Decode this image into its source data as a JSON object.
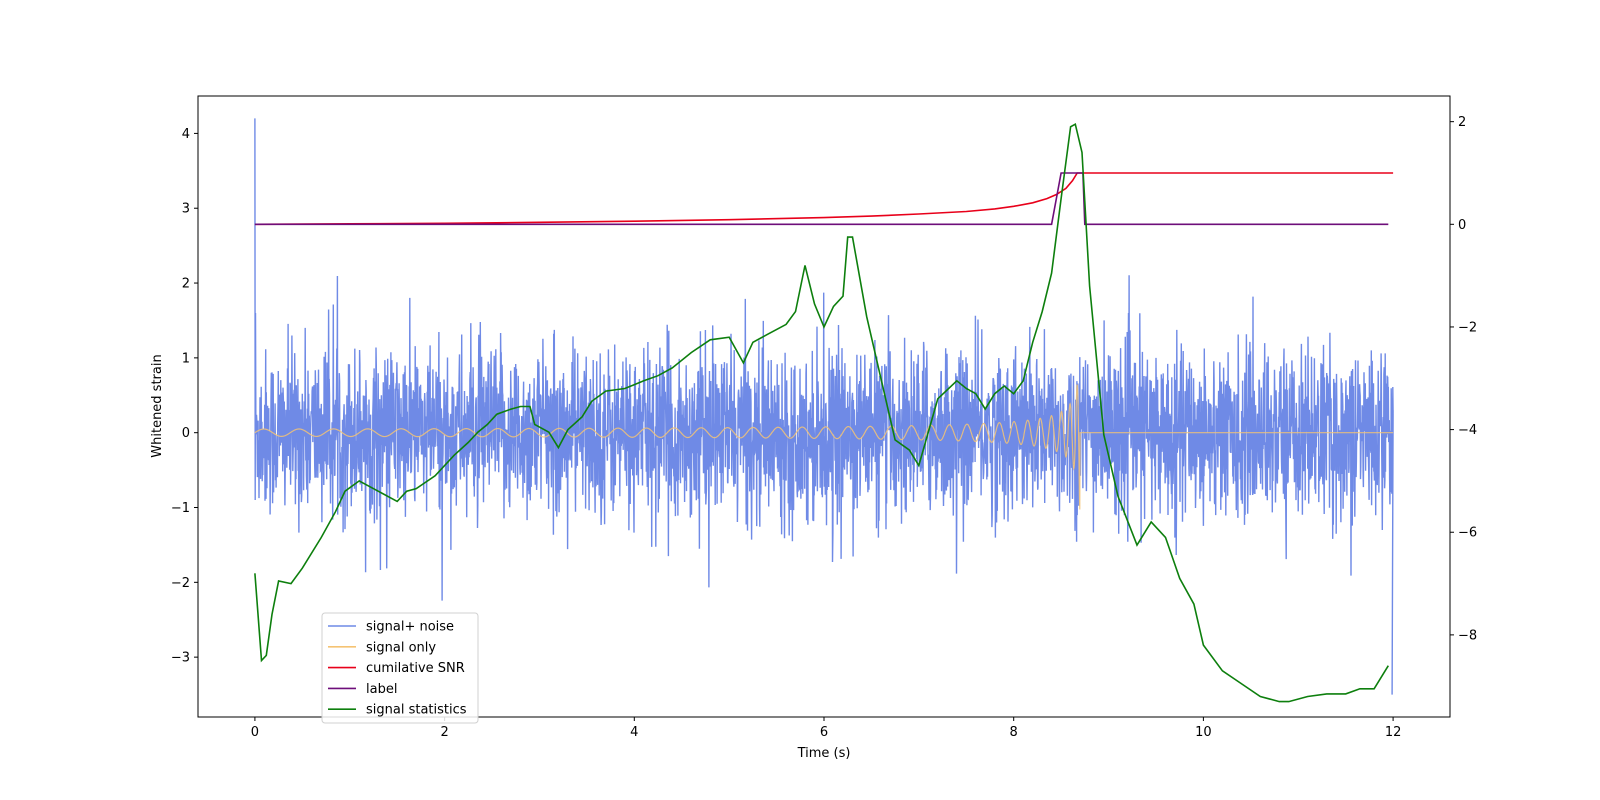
{
  "chart_data": {
    "type": "line",
    "xlabel": "Time (s)",
    "ylabel": "Whitened strain",
    "xlim": [
      -0.6,
      12.6
    ],
    "ylim_left": [
      -3.8,
      4.5
    ],
    "ylim_right": [
      -9.6,
      2.5
    ],
    "x_ticks": [
      0,
      2,
      4,
      6,
      8,
      10,
      12
    ],
    "y_left_ticks": [
      -3,
      -2,
      -1,
      0,
      1,
      2,
      3,
      4
    ],
    "y_right_ticks": [
      -8,
      -6,
      -4,
      -2,
      0,
      2
    ],
    "legend_position": "lower-left",
    "series": [
      {
        "name": "signal+ noise",
        "axis": "left",
        "color": "#6f8ae6",
        "kind": "noise",
        "description_values": {
          "t_start": 0,
          "t_end": 12,
          "spike_t": 0.0,
          "spike_max": 4.2,
          "end_min": -3.5,
          "typical_amplitude": 0.55
        }
      },
      {
        "name": "signal only",
        "axis": "left",
        "color": "#f5c373",
        "kind": "chirp",
        "description_values": {
          "t_start": 0,
          "t_merger": 8.7,
          "t_end": 12,
          "peak_amplitude": 1.1
        }
      },
      {
        "name": "cumilative SNR",
        "axis": "right",
        "color": "#e8001a",
        "x": [
          0,
          1,
          2,
          3,
          4,
          5,
          6,
          6.5,
          7,
          7.5,
          7.8,
          8.0,
          8.2,
          8.35,
          8.45,
          8.55,
          8.62,
          8.67,
          8.71,
          8.72,
          9,
          10,
          11,
          12
        ],
        "y": [
          0,
          0.01,
          0.02,
          0.04,
          0.06,
          0.09,
          0.13,
          0.16,
          0.2,
          0.25,
          0.3,
          0.35,
          0.42,
          0.5,
          0.58,
          0.7,
          0.85,
          1.0,
          1.0,
          1.0,
          1.0,
          1.0,
          1.0,
          1.0
        ]
      },
      {
        "name": "label",
        "axis": "right",
        "color": "#6e0e7a",
        "x": [
          0,
          8.4,
          8.5,
          8.73,
          8.75,
          11.95
        ],
        "y": [
          0,
          0,
          1,
          1,
          0,
          0
        ]
      },
      {
        "name": "signal statistics",
        "axis": "right",
        "color": "#0d7f0d",
        "x": [
          0,
          0.07,
          0.12,
          0.18,
          0.25,
          0.38,
          0.5,
          0.7,
          0.85,
          0.95,
          1.1,
          1.3,
          1.5,
          1.6,
          1.7,
          1.9,
          2.1,
          2.25,
          2.35,
          2.45,
          2.55,
          2.7,
          2.8,
          2.9,
          2.95,
          3.1,
          3.2,
          3.3,
          3.45,
          3.55,
          3.7,
          3.9,
          4.1,
          4.25,
          4.4,
          4.6,
          4.8,
          5.0,
          5.15,
          5.25,
          5.4,
          5.6,
          5.7,
          5.8,
          5.9,
          6.0,
          6.1,
          6.2,
          6.25,
          6.3,
          6.45,
          6.6,
          6.75,
          6.9,
          7.0,
          7.2,
          7.4,
          7.5,
          7.6,
          7.7,
          7.8,
          7.9,
          8.0,
          8.1,
          8.2,
          8.3,
          8.4,
          8.5,
          8.6,
          8.65,
          8.72,
          8.8,
          8.95,
          9.1,
          9.3,
          9.45,
          9.6,
          9.75,
          9.9,
          10.0,
          10.2,
          10.4,
          10.6,
          10.8,
          10.9,
          11.1,
          11.3,
          11.5,
          11.65,
          11.8,
          11.95
        ],
        "y": [
          -6.8,
          -8.5,
          -8.4,
          -7.6,
          -6.95,
          -7.0,
          -6.7,
          -6.1,
          -5.6,
          -5.2,
          -5.0,
          -5.2,
          -5.4,
          -5.2,
          -5.15,
          -4.9,
          -4.5,
          -4.25,
          -4.05,
          -3.9,
          -3.7,
          -3.6,
          -3.55,
          -3.55,
          -3.9,
          -4.05,
          -4.35,
          -4.0,
          -3.75,
          -3.45,
          -3.25,
          -3.2,
          -3.05,
          -2.95,
          -2.8,
          -2.5,
          -2.25,
          -2.2,
          -2.7,
          -2.3,
          -2.15,
          -1.95,
          -1.7,
          -0.8,
          -1.55,
          -2.0,
          -1.6,
          -1.4,
          -0.25,
          -0.25,
          -1.8,
          -3.0,
          -4.2,
          -4.4,
          -4.7,
          -3.4,
          -3.05,
          -3.2,
          -3.3,
          -3.6,
          -3.3,
          -3.15,
          -3.3,
          -3.05,
          -2.3,
          -1.7,
          -0.95,
          0.5,
          1.9,
          1.95,
          1.4,
          -1.2,
          -4.1,
          -5.3,
          -6.25,
          -5.8,
          -6.1,
          -6.9,
          -7.4,
          -8.2,
          -8.7,
          -8.95,
          -9.2,
          -9.3,
          -9.3,
          -9.2,
          -9.15,
          -9.15,
          -9.05,
          -9.05,
          -8.6
        ]
      }
    ]
  }
}
